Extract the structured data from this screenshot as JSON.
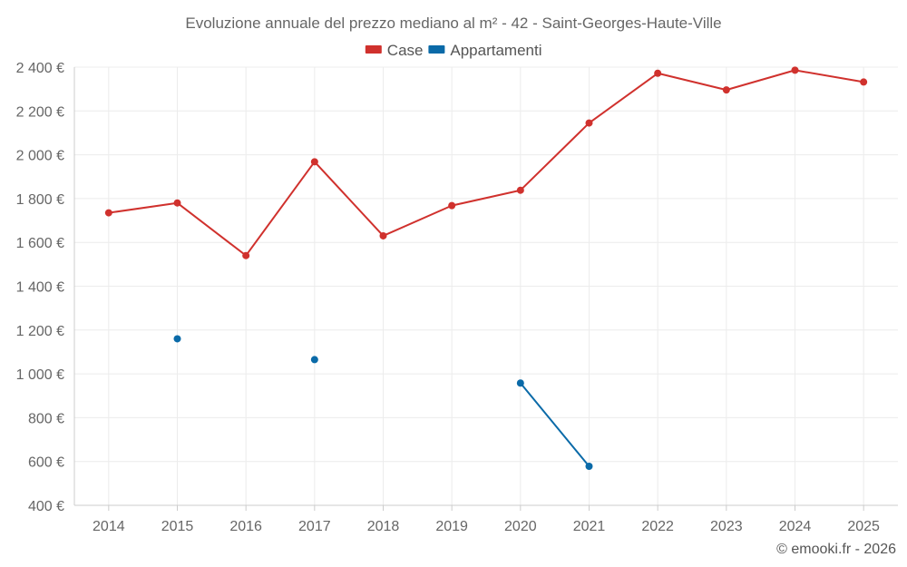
{
  "chart_data": {
    "type": "line",
    "title": "Evoluzione annuale del prezzo mediano al m² - 42 - Saint-Georges-Haute-Ville",
    "categories": [
      "2014",
      "2015",
      "2016",
      "2017",
      "2018",
      "2019",
      "2020",
      "2021",
      "2022",
      "2023",
      "2024",
      "2025"
    ],
    "series": [
      {
        "name": "Case",
        "color": "#d0312d",
        "values": [
          1735,
          1780,
          1540,
          1968,
          1630,
          1768,
          1838,
          2145,
          2372,
          2296,
          2386,
          2332
        ]
      },
      {
        "name": "Appartamenti",
        "color": "#0a6aa8",
        "values": [
          null,
          1160,
          null,
          1065,
          null,
          null,
          958,
          578,
          null,
          null,
          null,
          null
        ]
      }
    ],
    "ylim": [
      400,
      2400
    ],
    "yticks": [
      400,
      600,
      800,
      1000,
      1200,
      1400,
      1600,
      1800,
      2000,
      2200,
      2400
    ],
    "ytick_labels": [
      "400 €",
      "600 €",
      "800 €",
      "1 000 €",
      "1 200 €",
      "1 400 €",
      "1 600 €",
      "1 800 €",
      "2 000 €",
      "2 200 €",
      "2 400 €"
    ],
    "xlabel": "",
    "ylabel": "",
    "legend_position": "top-center",
    "credit": "© emooki.fr - 2026"
  }
}
